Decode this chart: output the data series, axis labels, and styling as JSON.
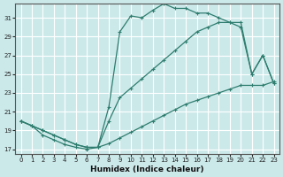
{
  "xlabel": "Humidex (Indice chaleur)",
  "bg_color": "#cce9ea",
  "line_color": "#2e7d6e",
  "grid_color": "#ffffff",
  "xlim": [
    -0.5,
    23.5
  ],
  "ylim": [
    16.5,
    32.5
  ],
  "yticks": [
    17,
    19,
    21,
    23,
    25,
    27,
    29,
    31
  ],
  "xticks": [
    0,
    1,
    2,
    3,
    4,
    5,
    6,
    7,
    8,
    9,
    10,
    11,
    12,
    13,
    14,
    15,
    16,
    17,
    18,
    19,
    20,
    21,
    22,
    23
  ],
  "line1_x": [
    0,
    1,
    2,
    3,
    4,
    5,
    6,
    7,
    8,
    9,
    10,
    11,
    12,
    13,
    14,
    15,
    16,
    17,
    18,
    19,
    20,
    21,
    22,
    23
  ],
  "line1_y": [
    20.0,
    19.5,
    19.0,
    18.5,
    18.0,
    17.5,
    17.2,
    17.2,
    17.6,
    18.2,
    18.8,
    19.4,
    20.0,
    20.6,
    21.2,
    21.8,
    22.2,
    22.6,
    23.0,
    23.4,
    23.8,
    23.8,
    23.8,
    24.2
  ],
  "line2_x": [
    0,
    1,
    2,
    3,
    4,
    5,
    6,
    7,
    8,
    9,
    10,
    11,
    12,
    13,
    14,
    15,
    16,
    17,
    18,
    19,
    20,
    21,
    22,
    23
  ],
  "line2_y": [
    20.0,
    19.5,
    18.5,
    18.0,
    17.5,
    17.2,
    17.0,
    17.2,
    21.5,
    29.5,
    31.2,
    31.0,
    31.8,
    32.5,
    32.0,
    32.0,
    31.5,
    31.5,
    31.0,
    30.5,
    30.0,
    25.0,
    27.0,
    24.0
  ],
  "line3_x": [
    0,
    1,
    2,
    3,
    4,
    5,
    6,
    7,
    8,
    9,
    10,
    11,
    12,
    13,
    14,
    15,
    16,
    17,
    18,
    19,
    20,
    21,
    22,
    23
  ],
  "line3_y": [
    20.0,
    19.5,
    19.0,
    18.5,
    18.0,
    17.5,
    17.2,
    17.2,
    20.0,
    22.5,
    23.5,
    24.5,
    25.5,
    26.5,
    27.5,
    28.5,
    29.5,
    30.0,
    30.5,
    30.5,
    30.5,
    25.0,
    27.0,
    24.0
  ]
}
